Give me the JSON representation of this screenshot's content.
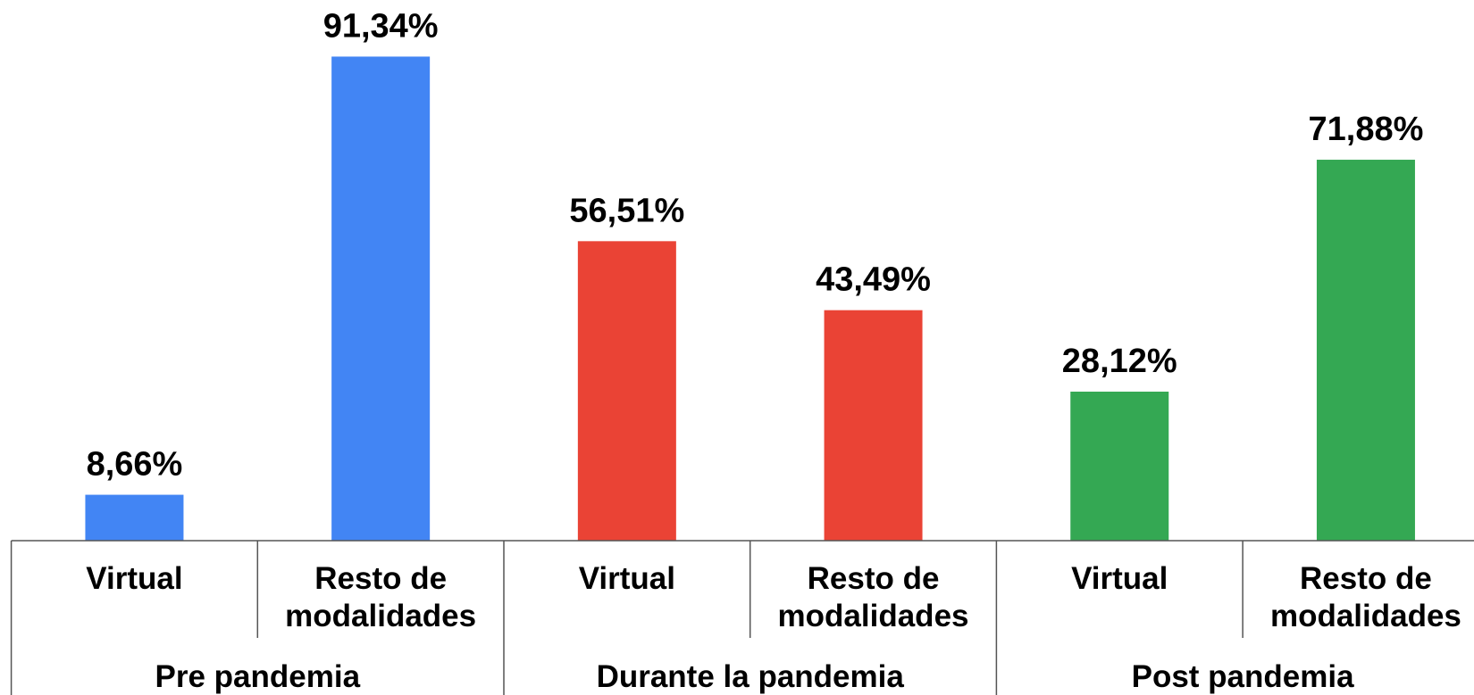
{
  "chart_data": {
    "type": "bar",
    "categories": [
      "Virtual",
      "Resto de modalidades",
      "Virtual",
      "Resto de modalidades",
      "Virtual",
      "Resto de modalidades"
    ],
    "groups": [
      "Pre pandemia",
      "Durante la pandemia",
      "Post pandemia"
    ],
    "values": [
      8.66,
      91.34,
      56.51,
      43.49,
      28.12,
      71.88
    ],
    "value_labels": [
      "8,66%",
      "91,34%",
      "56,51%",
      "43,49%",
      "28,12%",
      "71,88%"
    ],
    "colors": [
      "#4285f4",
      "#4285f4",
      "#ea4335",
      "#ea4335",
      "#34a853",
      "#34a853"
    ]
  }
}
